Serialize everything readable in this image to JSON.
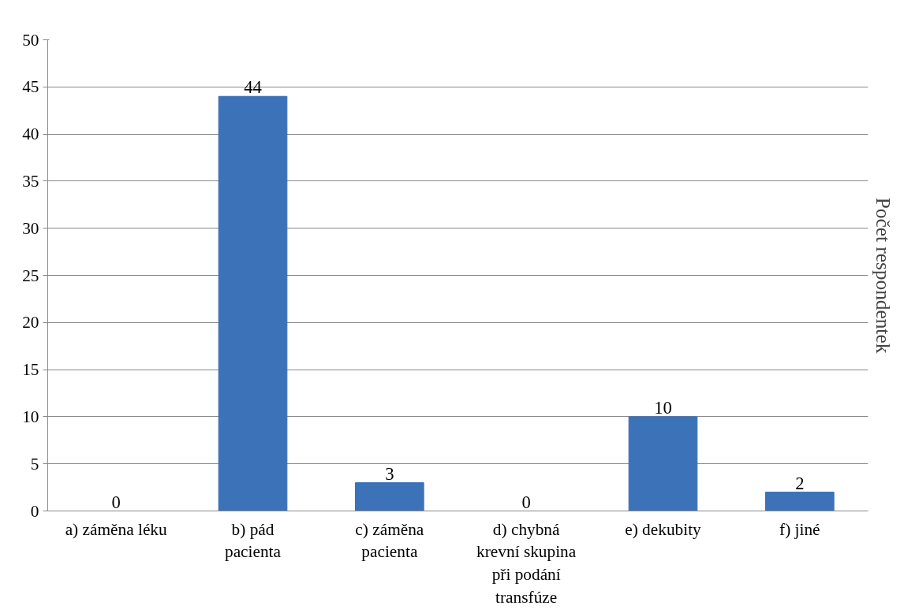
{
  "chart_data": {
    "type": "bar",
    "categories": [
      "a) záměna léku",
      "b) pád pacienta",
      "c) záměna pacienta",
      "d) chybná krevní skupina při podání transfúze",
      "e) dekubity",
      "f) jiné"
    ],
    "values": [
      0,
      44,
      3,
      0,
      10,
      2
    ],
    "color": "#3c72b8",
    "ylabel": "Počet respondentek",
    "ylim": [
      0,
      50
    ],
    "yticks": [
      0,
      5,
      10,
      15,
      20,
      25,
      30,
      35,
      40,
      45,
      50
    ],
    "grid": "y",
    "data_labels": true
  }
}
